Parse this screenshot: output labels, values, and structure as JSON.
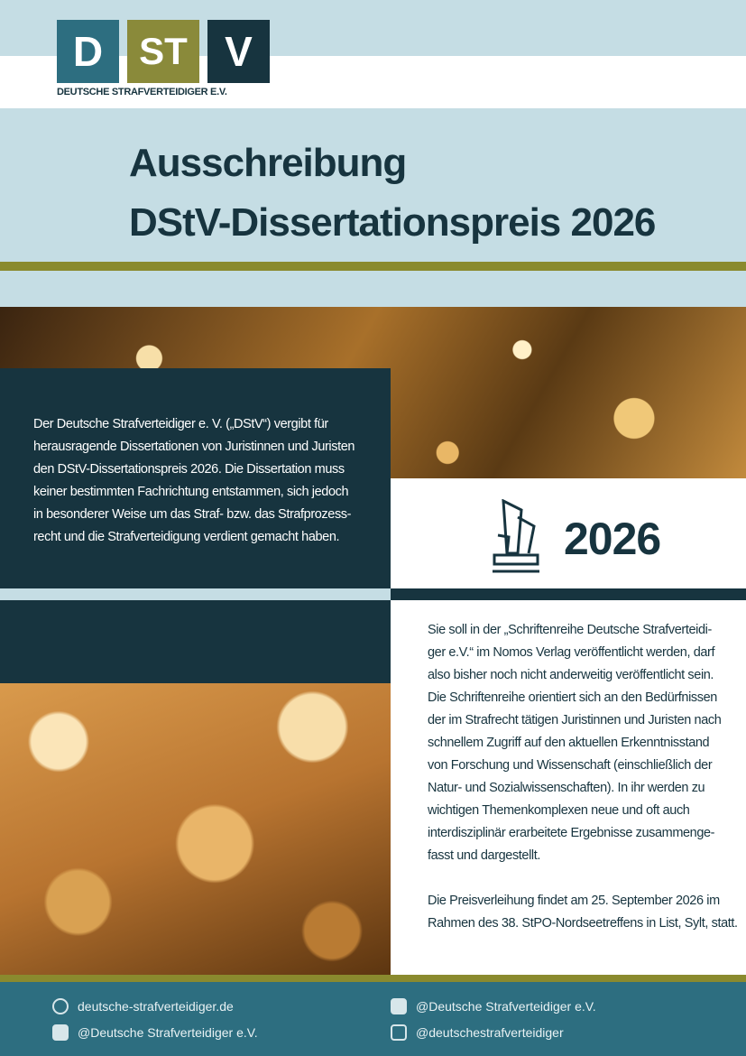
{
  "header": {
    "logo": {
      "letters": [
        "D",
        "ST",
        "V"
      ],
      "name": "DEUTSCHE STRAFVERTEIDIGER E.V."
    },
    "title": [
      "Ausschreibung",
      "DStV-Dissertationspreis 2026"
    ]
  },
  "intro": [
    "Der Deutsche Strafverteidiger e. V. („DStV“) vergibt für",
    "herausragende Dissertationen von Juristinnen und Juristen",
    "den DStV-Dissertationspreis 2026. Die Dissertation muss",
    "keiner bestimmten Fachrichtung entstammen, sich jedoch",
    "in besonderer Weise um das Straf- bzw. das Strafprozess-",
    "recht und die Strafverteidigung verdient gemacht haben."
  ],
  "year": "2026",
  "body": [
    [
      "Sie soll in der „Schriftenreihe Deutsche Strafverteidi-",
      "ger e.V.“ im Nomos Verlag veröffentlicht werden, darf",
      "also bisher noch nicht anderweitig veröffentlicht sein.",
      "Die Schriftenreihe orientiert sich an den Bedürfnissen",
      "der im Strafrecht tätigen Juristinnen und Juristen nach",
      "schnellem Zugriff auf den aktuellen Erkenntnisstand",
      "von Forschung und Wissenschaft (einschließlich der",
      "Natur- und Sozialwissenschaften). In ihr werden zu",
      "wichtigen Themenkomplexen neue und oft auch",
      "interdisziplinär erarbeitete Ergebnisse zusammenge-",
      "fasst und dargestellt."
    ],
    [
      "Die Preisverleihung findet am 25. September 2026 im",
      "Rahmen des 38. StPO-Nordseetreffens in List, Sylt, statt."
    ]
  ],
  "footer": {
    "website": "deutsche-strafverteidiger.de",
    "linkedin": "@Deutsche Strafverteidiger e.V.",
    "facebook": "@Deutsche Strafverteidiger e.V.",
    "instagram": "@deutschestrafverteidiger"
  }
}
